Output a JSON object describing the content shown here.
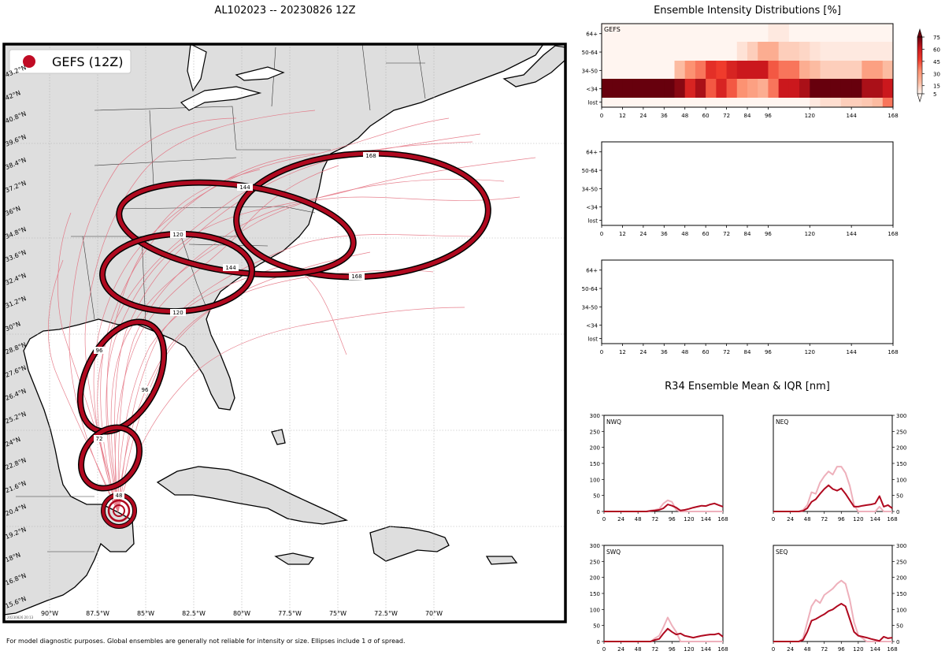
{
  "colors": {
    "accent": "#b0091f",
    "land": "#e3e3e3",
    "ocean": "#ffffff",
    "track": "#e36a7a",
    "iqr_light": "#eeb0bb"
  },
  "map": {
    "title": "AL102023 -- 20230826 12Z",
    "legend_label": "GEFS (12Z)",
    "stamp": "20230826 20:13",
    "lon_labels": [
      "90°W",
      "87.5°W",
      "85°W",
      "82.5°W",
      "80°W",
      "77.5°W",
      "75°W",
      "72.5°W",
      "70°W"
    ],
    "lat_labels": [
      "43.2°N",
      "42°N",
      "40.8°N",
      "39.6°N",
      "38.4°N",
      "37.2°N",
      "36°N",
      "34.8°N",
      "33.6°N",
      "32.4°N",
      "31.2°N",
      "30°N",
      "28.8°N",
      "27.6°N",
      "26.4°N",
      "25.2°N",
      "24°N",
      "22.8°N",
      "21.6°N",
      "20.4°N",
      "19.2°N",
      "18°N",
      "16.8°N",
      "15.6°N"
    ],
    "ellipse_labels": [
      {
        "text": "168",
        "lead": 168
      },
      {
        "text": "168",
        "lead": 168
      },
      {
        "text": "144",
        "lead": 144
      },
      {
        "text": "144",
        "lead": 144
      },
      {
        "text": "120",
        "lead": 120
      },
      {
        "text": "120",
        "lead": 120
      },
      {
        "text": "96",
        "lead": 96
      },
      {
        "text": "96",
        "lead": 96
      },
      {
        "text": "72",
        "lead": 72
      },
      {
        "text": "48",
        "lead": 48
      }
    ],
    "footer": "For model diagnostic purposes. Global ensembles are generally not reliable for intensity or size. Ellipses include 1 σ of spread."
  },
  "intensity": {
    "title": "Ensemble Intensity Distributions [%]",
    "panel_label": "GEFS",
    "x_ticks": [
      0,
      12,
      24,
      36,
      48,
      60,
      72,
      84,
      96,
      120,
      144,
      168
    ],
    "y_categories": [
      "lost",
      "<34",
      "34-50",
      "50-64",
      "64+"
    ],
    "colorbar_ticks": [
      5,
      15,
      30,
      45,
      60,
      75
    ]
  },
  "r34": {
    "title": "R34 Ensemble Mean & IQR [nm]",
    "x_ticks": [
      0,
      24,
      48,
      72,
      96,
      120,
      144,
      168
    ],
    "y_ticks": [
      0,
      50,
      100,
      150,
      200,
      250,
      300
    ],
    "panels": [
      {
        "name": "NWQ"
      },
      {
        "name": "NEQ"
      },
      {
        "name": "SWQ"
      },
      {
        "name": "SEQ"
      }
    ]
  },
  "chart_data": [
    {
      "type": "heatmap",
      "title": "Ensemble Intensity Distributions [%]",
      "panel": "GEFS",
      "x": [
        0,
        6,
        12,
        18,
        24,
        30,
        36,
        42,
        48,
        54,
        60,
        66,
        72,
        78,
        84,
        90,
        96,
        102,
        108,
        114,
        120,
        126,
        132,
        138,
        144,
        150,
        156,
        162,
        168
      ],
      "y_categories": [
        "lost",
        "<34",
        "34-50",
        "50-64",
        "64+"
      ],
      "values": [
        [
          0,
          0,
          0,
          0,
          0,
          0,
          0,
          0,
          0,
          0,
          0,
          0,
          0,
          0,
          0,
          0,
          0,
          0,
          0,
          0,
          3,
          6,
          6,
          10,
          10,
          12,
          15,
          35,
          35
        ],
        [
          85,
          85,
          85,
          85,
          85,
          85,
          85,
          70,
          55,
          65,
          40,
          55,
          40,
          30,
          25,
          20,
          35,
          60,
          60,
          65,
          75,
          85,
          85,
          80,
          80,
          65,
          65,
          60,
          60
        ],
        [
          0,
          0,
          0,
          0,
          0,
          0,
          0,
          15,
          30,
          35,
          50,
          45,
          55,
          60,
          60,
          60,
          40,
          35,
          35,
          20,
          15,
          10,
          10,
          10,
          10,
          25,
          25,
          15,
          15
        ],
        [
          0,
          0,
          0,
          0,
          0,
          0,
          0,
          0,
          0,
          0,
          0,
          0,
          0,
          5,
          10,
          20,
          20,
          10,
          10,
          8,
          5,
          3,
          3,
          3,
          3,
          3,
          3,
          3,
          3
        ],
        [
          0,
          0,
          0,
          0,
          0,
          0,
          0,
          0,
          0,
          0,
          0,
          0,
          0,
          0,
          0,
          0,
          3,
          3,
          0,
          0,
          0,
          0,
          0,
          0,
          0,
          0,
          0,
          0,
          0
        ]
      ],
      "colorbar": [
        5,
        15,
        30,
        45,
        60,
        75
      ]
    },
    {
      "type": "heatmap",
      "title": "",
      "x_ticks": [
        0,
        12,
        24,
        36,
        48,
        60,
        72,
        84,
        96,
        120,
        144,
        168
      ],
      "y_categories": [
        "lost",
        "<34",
        "34-50",
        "50-64",
        "64+"
      ],
      "values": []
    },
    {
      "type": "heatmap",
      "title": "",
      "x_ticks": [
        0,
        12,
        24,
        36,
        48,
        60,
        72,
        84,
        96,
        120,
        144,
        168
      ],
      "y_categories": [
        "lost",
        "<34",
        "34-50",
        "50-64",
        "64+"
      ],
      "values": []
    },
    {
      "type": "line",
      "title": "NWQ",
      "x": [
        0,
        6,
        12,
        18,
        24,
        30,
        36,
        42,
        48,
        54,
        60,
        66,
        72,
        78,
        84,
        90,
        96,
        102,
        108,
        114,
        120,
        126,
        132,
        138,
        144,
        150,
        156,
        162,
        168
      ],
      "ylim": [
        0,
        300
      ],
      "series": [
        {
          "role": "mean",
          "values": [
            0,
            0,
            0,
            0,
            0,
            0,
            0,
            0,
            0,
            0,
            0,
            2,
            3,
            5,
            10,
            22,
            18,
            12,
            3,
            5,
            8,
            12,
            15,
            18,
            17,
            22,
            25,
            20,
            15
          ]
        },
        {
          "role": "iqr",
          "values": [
            0,
            0,
            0,
            0,
            0,
            0,
            0,
            0,
            0,
            0,
            0,
            3,
            5,
            8,
            25,
            35,
            30,
            5,
            0,
            0,
            0,
            0,
            0,
            0,
            0,
            0,
            0,
            0,
            0
          ]
        }
      ]
    },
    {
      "type": "line",
      "title": "NEQ",
      "x": [
        0,
        6,
        12,
        18,
        24,
        30,
        36,
        42,
        48,
        54,
        60,
        66,
        72,
        78,
        84,
        90,
        96,
        102,
        108,
        114,
        120,
        126,
        132,
        138,
        144,
        150,
        156,
        162,
        168
      ],
      "ylim": [
        0,
        300
      ],
      "series": [
        {
          "role": "mean",
          "values": [
            0,
            0,
            0,
            0,
            0,
            0,
            0,
            2,
            10,
            30,
            38,
            55,
            70,
            82,
            70,
            65,
            72,
            55,
            35,
            15,
            15,
            18,
            20,
            22,
            25,
            48,
            15,
            20,
            10
          ]
        },
        {
          "role": "iqr",
          "values": [
            0,
            0,
            0,
            0,
            0,
            0,
            0,
            5,
            20,
            60,
            55,
            90,
            110,
            125,
            115,
            140,
            140,
            120,
            80,
            20,
            0,
            0,
            0,
            0,
            0,
            15,
            0,
            0,
            0
          ]
        }
      ]
    },
    {
      "type": "line",
      "title": "SWQ",
      "x": [
        0,
        6,
        12,
        18,
        24,
        30,
        36,
        42,
        48,
        54,
        60,
        66,
        72,
        78,
        84,
        90,
        96,
        102,
        108,
        114,
        120,
        126,
        132,
        138,
        144,
        150,
        156,
        162,
        168
      ],
      "ylim": [
        0,
        300
      ],
      "series": [
        {
          "role": "mean",
          "values": [
            0,
            0,
            0,
            0,
            0,
            0,
            0,
            0,
            0,
            0,
            0,
            0,
            5,
            8,
            25,
            40,
            30,
            22,
            25,
            18,
            15,
            12,
            15,
            18,
            20,
            22,
            22,
            25,
            15
          ]
        },
        {
          "role": "iqr",
          "values": [
            0,
            0,
            0,
            0,
            0,
            0,
            0,
            0,
            0,
            0,
            0,
            0,
            10,
            18,
            45,
            75,
            50,
            30,
            0,
            0,
            0,
            0,
            0,
            0,
            0,
            0,
            0,
            0,
            0
          ]
        }
      ]
    },
    {
      "type": "line",
      "title": "SEQ",
      "x": [
        0,
        6,
        12,
        18,
        24,
        30,
        36,
        42,
        48,
        54,
        60,
        66,
        72,
        78,
        84,
        90,
        96,
        102,
        108,
        114,
        120,
        126,
        132,
        138,
        144,
        150,
        156,
        162,
        168
      ],
      "ylim": [
        0,
        300
      ],
      "series": [
        {
          "role": "mean",
          "values": [
            0,
            0,
            0,
            0,
            0,
            0,
            0,
            5,
            30,
            65,
            70,
            78,
            85,
            95,
            100,
            110,
            118,
            110,
            70,
            30,
            18,
            15,
            12,
            8,
            5,
            2,
            15,
            10,
            12
          ]
        },
        {
          "role": "iqr",
          "values": [
            0,
            0,
            0,
            0,
            0,
            0,
            0,
            10,
            60,
            110,
            130,
            120,
            145,
            155,
            165,
            180,
            190,
            180,
            130,
            60,
            20,
            10,
            0,
            0,
            0,
            0,
            0,
            0,
            0
          ]
        }
      ]
    }
  ]
}
